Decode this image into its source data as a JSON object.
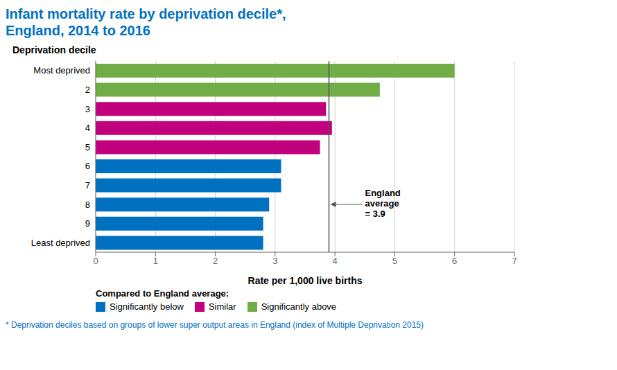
{
  "chart_data": {
    "type": "bar",
    "orientation": "horizontal",
    "title": "Infant mortality rate by deprivation decile*,\nEngland, 2014 to 2016",
    "ylabel": "Deprivation decile",
    "xlabel": "Rate per 1,000 live births",
    "categories": [
      "Most deprived",
      "2",
      "3",
      "4",
      "5",
      "6",
      "7",
      "8",
      "9",
      "Least deprived"
    ],
    "values": [
      6.0,
      4.75,
      3.85,
      3.95,
      3.75,
      3.1,
      3.1,
      2.9,
      2.8,
      2.8
    ],
    "colors": [
      "#70AD47",
      "#70AD47",
      "#C0007C",
      "#C0007C",
      "#C0007C",
      "#0070C0",
      "#0070C0",
      "#0070C0",
      "#0070C0",
      "#0070C0"
    ],
    "xlim": [
      0,
      7
    ],
    "xticks": [
      0,
      1,
      2,
      3,
      4,
      5,
      6,
      7
    ],
    "grid": true,
    "reference_line": {
      "x": 3.9,
      "label": "England\naverage\n= 3.9",
      "category": "8"
    },
    "legend": "lower left",
    "legend_title": "Compared to England average:",
    "legend_entries": [
      {
        "name": "Significantly below",
        "color": "#0070C0"
      },
      {
        "name": "Similar",
        "color": "#C0007C"
      },
      {
        "name": "Significantly above",
        "color": "#70AD47"
      }
    ],
    "footnote": "* Deprivation deciles based on groups of lower super output areas in England (index of Multiple Deprivation 2015)"
  }
}
